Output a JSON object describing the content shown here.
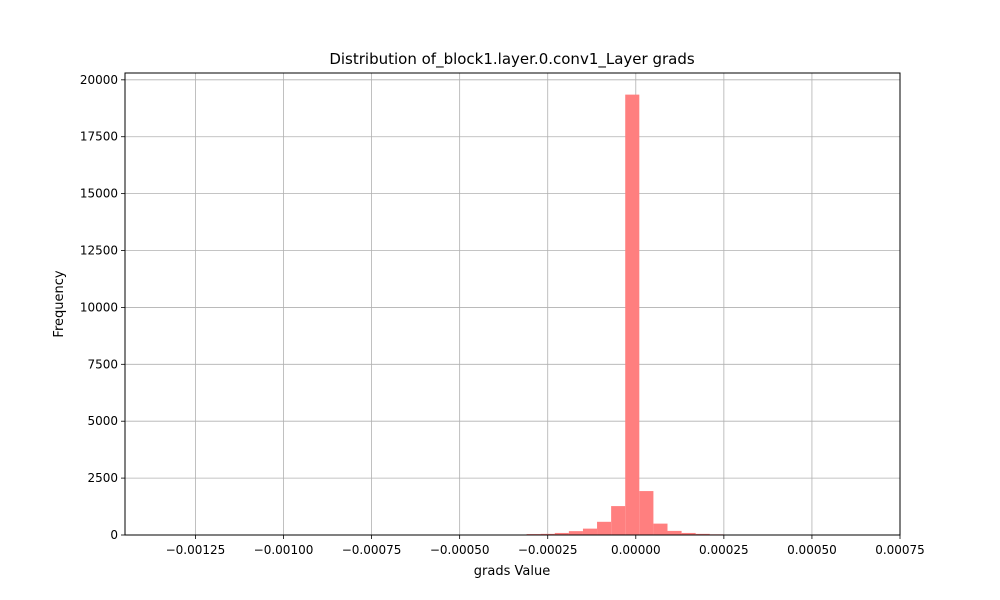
{
  "chart_data": {
    "type": "bar",
    "title": "Distribution of_block1.layer.0.conv1_Layer grads",
    "xlabel": "grads Value",
    "ylabel": "Frequency",
    "xlim": [
      -0.00145,
      0.00075
    ],
    "ylim": [
      0,
      20300
    ],
    "grid": true,
    "bar_color": "#ff7f7f",
    "x_ticks": [
      {
        "value": -0.00125,
        "label": "−0.00125"
      },
      {
        "value": -0.001,
        "label": "−0.00100"
      },
      {
        "value": -0.00075,
        "label": "−0.00075"
      },
      {
        "value": -0.0005,
        "label": "−0.00050"
      },
      {
        "value": -0.00025,
        "label": "−0.00025"
      },
      {
        "value": 0.0,
        "label": "0.00000"
      },
      {
        "value": 0.00025,
        "label": "0.00025"
      },
      {
        "value": 0.0005,
        "label": "0.00050"
      },
      {
        "value": 0.00075,
        "label": "0.00075"
      }
    ],
    "y_ticks": [
      {
        "value": 0,
        "label": "0"
      },
      {
        "value": 2500,
        "label": "2500"
      },
      {
        "value": 5000,
        "label": "5000"
      },
      {
        "value": 7500,
        "label": "7500"
      },
      {
        "value": 10000,
        "label": "10000"
      },
      {
        "value": 12500,
        "label": "12500"
      },
      {
        "value": 15000,
        "label": "15000"
      },
      {
        "value": 17500,
        "label": "17500"
      },
      {
        "value": 20000,
        "label": "20000"
      }
    ],
    "bins": [
      {
        "x0": -0.00039,
        "x1": -0.00035,
        "count": 10
      },
      {
        "x0": -0.00035,
        "x1": -0.00031,
        "count": 20
      },
      {
        "x0": -0.00031,
        "x1": -0.00027,
        "count": 40
      },
      {
        "x0": -0.00027,
        "x1": -0.00023,
        "count": 50
      },
      {
        "x0": -0.00023,
        "x1": -0.00019,
        "count": 90
      },
      {
        "x0": -0.00019,
        "x1": -0.00015,
        "count": 170
      },
      {
        "x0": -0.00015,
        "x1": -0.00011,
        "count": 280
      },
      {
        "x0": -0.00011,
        "x1": -7e-05,
        "count": 580
      },
      {
        "x0": -7e-05,
        "x1": -3e-05,
        "count": 1270
      },
      {
        "x0": -3e-05,
        "x1": 1e-05,
        "count": 19350
      },
      {
        "x0": 1e-05,
        "x1": 5e-05,
        "count": 1930
      },
      {
        "x0": 5e-05,
        "x1": 9e-05,
        "count": 500
      },
      {
        "x0": 9e-05,
        "x1": 0.00013,
        "count": 180
      },
      {
        "x0": 0.00013,
        "x1": 0.00017,
        "count": 90
      },
      {
        "x0": 0.00017,
        "x1": 0.00021,
        "count": 50
      },
      {
        "x0": 0.00021,
        "x1": 0.00025,
        "count": 30
      },
      {
        "x0": 0.00025,
        "x1": 0.00029,
        "count": 10
      }
    ]
  }
}
